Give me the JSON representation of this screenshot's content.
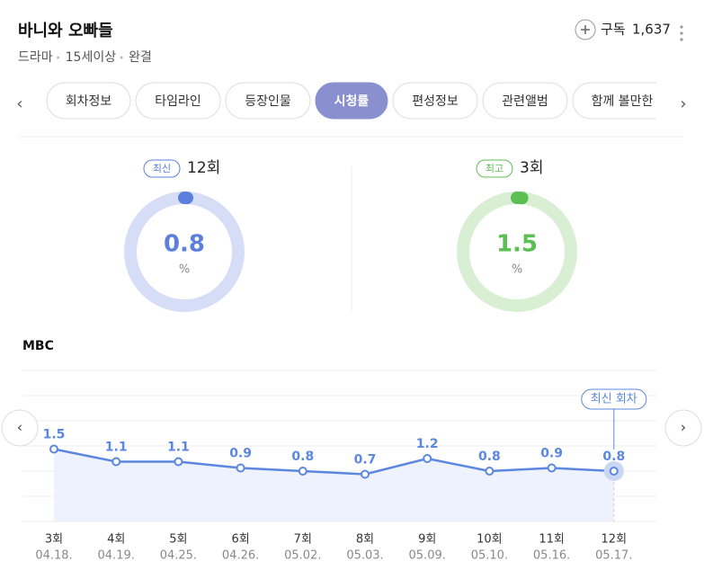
{
  "header": {
    "title": "바니와 오빠들",
    "meta": [
      "드라마",
      "15세이상",
      "완결"
    ],
    "subscribe_label": "구독",
    "subscribe_count": "1,637"
  },
  "tabs": [
    "회차정보",
    "타임라인",
    "등장인물",
    "시청률",
    "편성정보",
    "관련앨범",
    "함께 볼만한"
  ],
  "active_tab": 3,
  "gauges": [
    {
      "badge": "최신",
      "label": "12회",
      "value": 0.8,
      "unit": "%",
      "color": "#5b7fdb",
      "track": "#d6def7"
    },
    {
      "badge": "최고",
      "label": "3회",
      "value": 1.5,
      "unit": "%",
      "color": "#5cbf54",
      "track": "#d8efd4"
    }
  ],
  "chart_data": {
    "type": "line",
    "title": "MBC",
    "categories": [
      "3회",
      "4회",
      "5회",
      "6회",
      "7회",
      "8회",
      "9회",
      "10회",
      "11회",
      "12회"
    ],
    "dates": [
      "04.18.",
      "04.19.",
      "04.25.",
      "04.26.",
      "05.02.",
      "05.03.",
      "05.09.",
      "05.10.",
      "05.16.",
      "05.17."
    ],
    "values": [
      1.5,
      1.1,
      1.1,
      0.9,
      0.8,
      0.7,
      1.2,
      0.8,
      0.9,
      0.8
    ],
    "color": "#5b87e0",
    "ylim": [
      -0.8,
      4.0
    ],
    "annotation": "최신 회차"
  }
}
